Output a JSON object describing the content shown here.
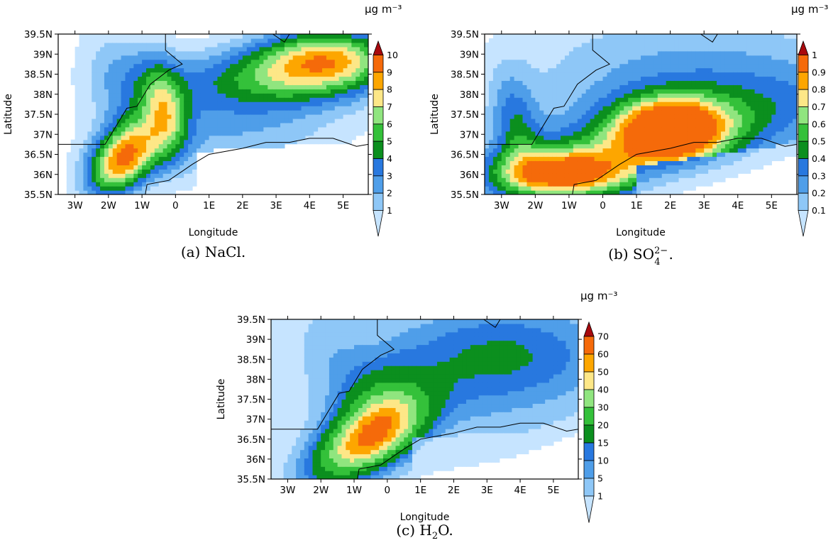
{
  "colors": {
    "levels": [
      "#c6e4ff",
      "#8ec7f7",
      "#4f9ee9",
      "#2878df",
      "#0b8f1e",
      "#34c13a",
      "#90e57f",
      "#fde787",
      "#fda600",
      "#f56a0a",
      "#a8090d"
    ],
    "land_line": "#000000",
    "frame": "#000000"
  },
  "chart_data": [
    {
      "type": "heatmap",
      "panel_id": "a",
      "caption_prefix": "(a)",
      "caption_formula": "NaCl.",
      "unit_label": "μg m⁻³",
      "xlabel": "Longitude",
      "ylabel": "Latitude",
      "x_ticks": [
        "3W",
        "2W",
        "1W",
        "0",
        "1E",
        "2E",
        "3E",
        "4E",
        "5E"
      ],
      "y_ticks": [
        "35.5N",
        "36N",
        "36.5N",
        "37N",
        "37.5N",
        "38N",
        "38.5N",
        "39N",
        "39.5N"
      ],
      "xlim": [
        -3.5,
        5.75
      ],
      "ylim": [
        35.5,
        39.5
      ],
      "colorbar_levels": [
        "1",
        "2",
        "3",
        "4",
        "5",
        "6",
        "7",
        "8",
        "9",
        "10"
      ],
      "colorbar_values": [
        1,
        2,
        3,
        4,
        5,
        6,
        7,
        8,
        9,
        10
      ],
      "max_value": 9.4,
      "grid": false
    },
    {
      "type": "heatmap",
      "panel_id": "b",
      "caption_prefix": "(b)",
      "caption_formula": "SO",
      "caption_sub": "4",
      "caption_sup": "2−",
      "caption_end": ".",
      "unit_label": "μg m⁻³",
      "xlabel": "Longitude",
      "ylabel": "Latitude",
      "x_ticks": [
        "3W",
        "2W",
        "1W",
        "0",
        "1E",
        "2E",
        "3E",
        "4E",
        "5E"
      ],
      "y_ticks": [
        "35.5N",
        "36N",
        "36.5N",
        "37N",
        "37.5N",
        "38N",
        "38.5N",
        "39N",
        "39.5N"
      ],
      "xlim": [
        -3.5,
        5.75
      ],
      "ylim": [
        35.5,
        39.5
      ],
      "colorbar_levels": [
        "0.1",
        "0.2",
        "0.3",
        "0.4",
        "0.5",
        "0.6",
        "0.7",
        "0.8",
        "0.9",
        "1"
      ],
      "colorbar_values": [
        0.1,
        0.2,
        0.3,
        0.4,
        0.5,
        0.6,
        0.7,
        0.8,
        0.9,
        1.0
      ],
      "max_value": 0.92,
      "grid": false
    },
    {
      "type": "heatmap",
      "panel_id": "c",
      "caption_prefix": "(c)",
      "caption_formula": "H",
      "caption_sub": "2",
      "caption_end": "O.",
      "unit_label": "μg m⁻³",
      "xlabel": "Longitude",
      "ylabel": "Latitude",
      "x_ticks": [
        "3W",
        "2W",
        "1W",
        "0",
        "1E",
        "2E",
        "3E",
        "4E",
        "5E"
      ],
      "y_ticks": [
        "35.5N",
        "36N",
        "36.5N",
        "37N",
        "37.5N",
        "38N",
        "38.5N",
        "39N",
        "39.5N"
      ],
      "xlim": [
        -3.5,
        5.75
      ],
      "ylim": [
        35.5,
        39.5
      ],
      "colorbar_levels": [
        "1",
        "5",
        "10",
        "15",
        "20",
        "30",
        "40",
        "50",
        "60",
        "70"
      ],
      "colorbar_values": [
        1,
        5,
        10,
        15,
        20,
        30,
        40,
        50,
        60,
        70
      ],
      "max_value": 62,
      "grid": false
    }
  ]
}
